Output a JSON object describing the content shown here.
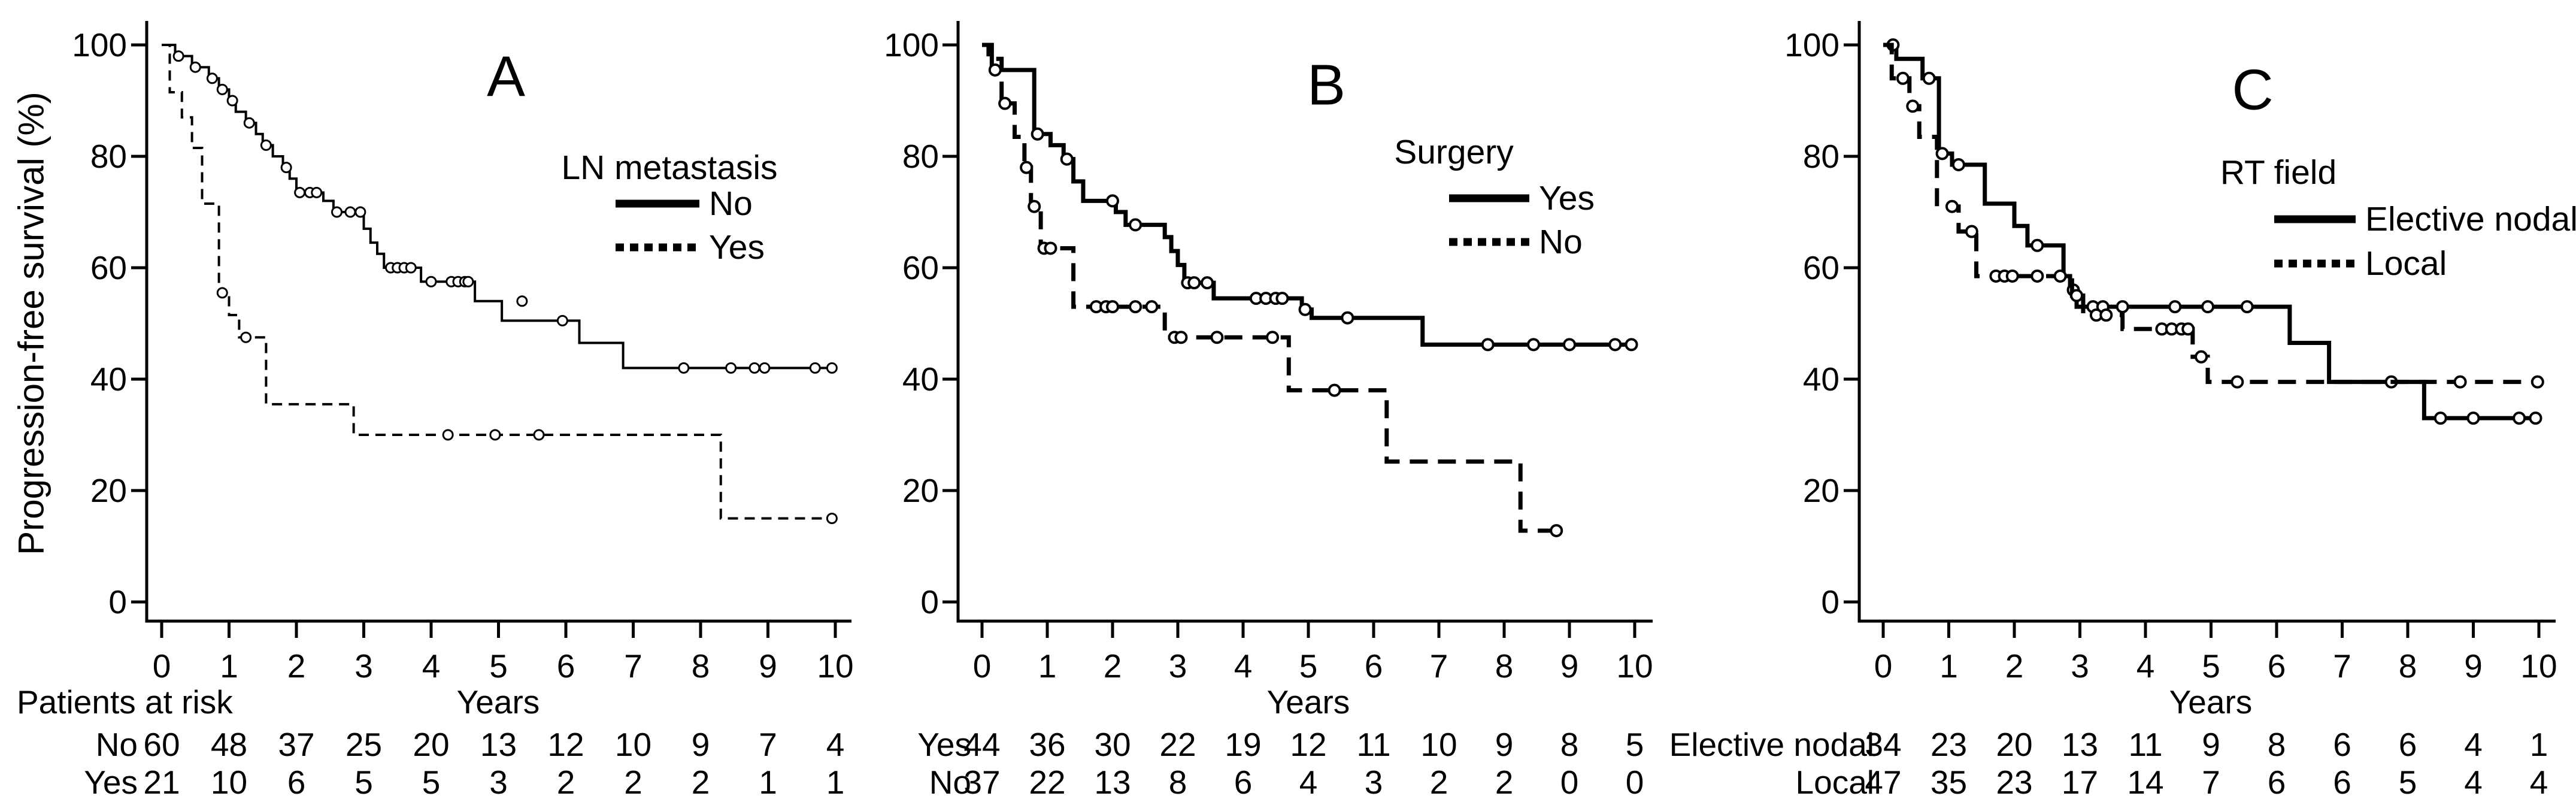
{
  "figure": {
    "background": "#ffffff",
    "ink_color": "#000000",
    "y_axis_label": "Progression-free survival (%)",
    "x_axis_label": "Years",
    "patients_at_risk_label": "Patients at risk",
    "y_ticks": [
      0,
      20,
      40,
      60,
      80,
      100
    ],
    "x_ticks": [
      0,
      1,
      2,
      3,
      4,
      5,
      6,
      7,
      8,
      9,
      10
    ]
  },
  "chart_data": [
    {
      "type": "line",
      "subtype": "kaplan-meier",
      "panel_letter": "A",
      "title": "",
      "xlabel": "Years",
      "ylabel": "Progression-free survival (%)",
      "xlim": [
        0,
        10
      ],
      "ylim": [
        0,
        100
      ],
      "grid": false,
      "legend": {
        "title": "LN metastasis",
        "position": "upper right",
        "entries": [
          {
            "label": "No",
            "style": "solid"
          },
          {
            "label": "Yes",
            "style": "dashed"
          }
        ]
      },
      "series": [
        {
          "name": "No",
          "style": "solid",
          "steps": [
            [
              0,
              100
            ],
            [
              0.2,
              98
            ],
            [
              0.45,
              96
            ],
            [
              0.7,
              94
            ],
            [
              0.85,
              92
            ],
            [
              1.0,
              90
            ],
            [
              1.1,
              88
            ],
            [
              1.25,
              86
            ],
            [
              1.4,
              84
            ],
            [
              1.5,
              82
            ],
            [
              1.65,
              80
            ],
            [
              1.8,
              78
            ],
            [
              1.9,
              76
            ],
            [
              2.0,
              73.5
            ],
            [
              2.4,
              72
            ],
            [
              2.55,
              70
            ],
            [
              3.0,
              67
            ],
            [
              3.1,
              64.5
            ],
            [
              3.2,
              62.5
            ],
            [
              3.3,
              60
            ],
            [
              3.85,
              57.5
            ],
            [
              4.65,
              54
            ],
            [
              5.05,
              50.5
            ],
            [
              6.2,
              46.5
            ],
            [
              6.85,
              42
            ],
            [
              10,
              42
            ]
          ],
          "censors": [
            [
              0.25,
              98
            ],
            [
              0.5,
              96
            ],
            [
              0.75,
              94
            ],
            [
              0.9,
              92
            ],
            [
              1.05,
              90
            ],
            [
              1.3,
              86
            ],
            [
              1.55,
              82
            ],
            [
              1.85,
              78
            ],
            [
              2.05,
              73.5
            ],
            [
              2.2,
              73.5
            ],
            [
              2.3,
              73.5
            ],
            [
              2.6,
              70
            ],
            [
              2.8,
              70
            ],
            [
              2.95,
              70
            ],
            [
              3.4,
              60
            ],
            [
              3.5,
              60
            ],
            [
              3.6,
              60
            ],
            [
              3.7,
              60
            ],
            [
              4.0,
              57.5
            ],
            [
              4.3,
              57.5
            ],
            [
              4.4,
              57.5
            ],
            [
              4.5,
              57.5
            ],
            [
              4.55,
              57.5
            ],
            [
              5.35,
              54
            ],
            [
              5.95,
              50.5
            ],
            [
              7.75,
              42
            ],
            [
              8.45,
              42
            ],
            [
              8.8,
              42
            ],
            [
              8.95,
              42
            ],
            [
              9.7,
              42
            ],
            [
              9.95,
              42
            ]
          ]
        },
        {
          "name": "Yes",
          "style": "dashed",
          "steps": [
            [
              0,
              100
            ],
            [
              0.12,
              91.5
            ],
            [
              0.3,
              87
            ],
            [
              0.45,
              81.5
            ],
            [
              0.6,
              71.5
            ],
            [
              0.85,
              55.5
            ],
            [
              1.0,
              51.5
            ],
            [
              1.15,
              47.5
            ],
            [
              1.55,
              35.5
            ],
            [
              2.85,
              30
            ],
            [
              8.3,
              15
            ],
            [
              10,
              15
            ]
          ],
          "censors": [
            [
              0.9,
              55.5
            ],
            [
              1.25,
              47.5
            ],
            [
              4.25,
              30
            ],
            [
              4.95,
              30
            ],
            [
              5.6,
              30
            ],
            [
              9.95,
              15
            ]
          ]
        }
      ],
      "risk_table": {
        "rows": [
          {
            "label": "No",
            "counts": [
              60,
              48,
              37,
              25,
              20,
              13,
              12,
              10,
              9,
              7,
              4
            ]
          },
          {
            "label": "Yes",
            "counts": [
              21,
              10,
              6,
              5,
              5,
              3,
              2,
              2,
              2,
              1,
              1
            ]
          }
        ]
      }
    },
    {
      "type": "line",
      "subtype": "kaplan-meier",
      "panel_letter": "B",
      "title": "",
      "xlabel": "Years",
      "ylabel": "Progression-free survival (%)",
      "xlim": [
        0,
        10
      ],
      "ylim": [
        0,
        100
      ],
      "grid": false,
      "legend": {
        "title": "Surgery",
        "position": "upper right",
        "entries": [
          {
            "label": "Yes",
            "style": "solid"
          },
          {
            "label": "No",
            "style": "dashed"
          }
        ]
      },
      "series": [
        {
          "name": "Yes",
          "style": "solid",
          "steps": [
            [
              0,
              100
            ],
            [
              0.15,
              95.5
            ],
            [
              0.8,
              84
            ],
            [
              1.05,
              82
            ],
            [
              1.25,
              79.5
            ],
            [
              1.4,
              75.5
            ],
            [
              1.55,
              72
            ],
            [
              2.05,
              70
            ],
            [
              2.2,
              67.7
            ],
            [
              2.8,
              65.5
            ],
            [
              2.9,
              63
            ],
            [
              3.0,
              60.5
            ],
            [
              3.1,
              57.3
            ],
            [
              3.55,
              54.5
            ],
            [
              4.9,
              52.5
            ],
            [
              5.05,
              51
            ],
            [
              6.75,
              46.2
            ],
            [
              10,
              46.2
            ]
          ],
          "censors": [
            [
              0.2,
              95.5
            ],
            [
              0.85,
              84
            ],
            [
              1.3,
              79.5
            ],
            [
              2.0,
              72
            ],
            [
              2.35,
              67.7
            ],
            [
              3.15,
              57.3
            ],
            [
              3.25,
              57.3
            ],
            [
              3.45,
              57.3
            ],
            [
              4.2,
              54.5
            ],
            [
              4.35,
              54.5
            ],
            [
              4.5,
              54.5
            ],
            [
              4.6,
              54.5
            ],
            [
              4.95,
              52.5
            ],
            [
              5.6,
              51
            ],
            [
              7.75,
              46.2
            ],
            [
              8.45,
              46.2
            ],
            [
              9.0,
              46.2
            ],
            [
              9.7,
              46.2
            ],
            [
              9.95,
              46.2
            ]
          ]
        },
        {
          "name": "No",
          "style": "dashed",
          "steps": [
            [
              0,
              100
            ],
            [
              0.1,
              97.5
            ],
            [
              0.3,
              89.5
            ],
            [
              0.5,
              83.5
            ],
            [
              0.65,
              78
            ],
            [
              0.75,
              71
            ],
            [
              0.9,
              63.5
            ],
            [
              1.4,
              53
            ],
            [
              2.8,
              47.5
            ],
            [
              4.7,
              38
            ],
            [
              6.2,
              25.2
            ],
            [
              8.25,
              12.8
            ],
            [
              8.9,
              12.8
            ]
          ],
          "censors": [
            [
              0.35,
              89.5
            ],
            [
              0.68,
              78
            ],
            [
              0.8,
              71
            ],
            [
              0.95,
              63.5
            ],
            [
              1.05,
              63.5
            ],
            [
              1.75,
              53
            ],
            [
              1.9,
              53
            ],
            [
              2.0,
              53
            ],
            [
              2.35,
              53
            ],
            [
              2.6,
              53
            ],
            [
              2.95,
              47.5
            ],
            [
              3.05,
              47.5
            ],
            [
              3.6,
              47.5
            ],
            [
              4.45,
              47.5
            ],
            [
              5.4,
              38
            ],
            [
              8.8,
              12.8
            ]
          ]
        }
      ],
      "risk_table": {
        "rows": [
          {
            "label": "Yes",
            "counts": [
              44,
              36,
              30,
              22,
              19,
              12,
              11,
              10,
              9,
              8,
              5
            ]
          },
          {
            "label": "No",
            "counts": [
              37,
              22,
              13,
              8,
              6,
              4,
              3,
              2,
              2,
              0,
              0
            ]
          }
        ]
      }
    },
    {
      "type": "line",
      "subtype": "kaplan-meier",
      "panel_letter": "C",
      "title": "",
      "xlabel": "Years",
      "ylabel": "Progression-free survival (%)",
      "xlim": [
        0,
        10
      ],
      "ylim": [
        0,
        100
      ],
      "grid": false,
      "legend": {
        "title": "RT field",
        "position": "upper right",
        "entries": [
          {
            "label": "Elective nodal",
            "style": "solid"
          },
          {
            "label": "Local",
            "style": "dashed"
          }
        ]
      },
      "series": [
        {
          "name": "Elective nodal",
          "style": "solid",
          "steps": [
            [
              0,
              100
            ],
            [
              0.2,
              97.5
            ],
            [
              0.6,
              94
            ],
            [
              0.85,
              80.5
            ],
            [
              1.05,
              78.5
            ],
            [
              1.55,
              71.5
            ],
            [
              2.0,
              67.5
            ],
            [
              2.2,
              64
            ],
            [
              2.75,
              58.5
            ],
            [
              2.85,
              56
            ],
            [
              2.95,
              53
            ],
            [
              6.2,
              46.5
            ],
            [
              6.8,
              39.5
            ],
            [
              8.25,
              33
            ],
            [
              10,
              33
            ]
          ],
          "censors": [
            [
              0.15,
              100
            ],
            [
              0.7,
              94
            ],
            [
              0.9,
              80.5
            ],
            [
              1.15,
              78.5
            ],
            [
              2.35,
              64
            ],
            [
              2.9,
              56
            ],
            [
              3.2,
              53
            ],
            [
              3.35,
              53
            ],
            [
              3.65,
              53
            ],
            [
              4.45,
              53
            ],
            [
              4.95,
              53
            ],
            [
              5.55,
              53
            ],
            [
              7.75,
              39.5
            ],
            [
              8.5,
              33
            ],
            [
              9.0,
              33
            ],
            [
              9.7,
              33
            ],
            [
              9.95,
              33
            ]
          ]
        },
        {
          "name": "Local",
          "style": "dashed",
          "steps": [
            [
              0,
              100
            ],
            [
              0.13,
              94
            ],
            [
              0.4,
              89
            ],
            [
              0.55,
              83.5
            ],
            [
              0.82,
              71
            ],
            [
              1.15,
              66.5
            ],
            [
              1.42,
              58.5
            ],
            [
              2.88,
              55
            ],
            [
              3.05,
              51.5
            ],
            [
              3.65,
              49
            ],
            [
              4.72,
              44
            ],
            [
              4.95,
              39.5
            ],
            [
              10,
              39.5
            ]
          ],
          "censors": [
            [
              0.3,
              94
            ],
            [
              0.45,
              89
            ],
            [
              1.05,
              71
            ],
            [
              1.35,
              66.5
            ],
            [
              1.72,
              58.5
            ],
            [
              1.85,
              58.5
            ],
            [
              1.97,
              58.5
            ],
            [
              2.35,
              58.5
            ],
            [
              2.7,
              58.5
            ],
            [
              2.95,
              55
            ],
            [
              3.25,
              51.5
            ],
            [
              3.4,
              51.5
            ],
            [
              4.25,
              49
            ],
            [
              4.4,
              49
            ],
            [
              4.55,
              49
            ],
            [
              4.65,
              49
            ],
            [
              4.85,
              44
            ],
            [
              5.4,
              39.5
            ],
            [
              8.8,
              39.5
            ],
            [
              9.98,
              39.5
            ]
          ]
        }
      ],
      "risk_table": {
        "rows": [
          {
            "label": "Elective nodal",
            "counts": [
              34,
              23,
              20,
              13,
              11,
              9,
              8,
              6,
              6,
              4,
              1
            ]
          },
          {
            "label": "Local",
            "counts": [
              47,
              35,
              23,
              17,
              14,
              7,
              6,
              6,
              5,
              4,
              4
            ]
          }
        ]
      }
    }
  ]
}
